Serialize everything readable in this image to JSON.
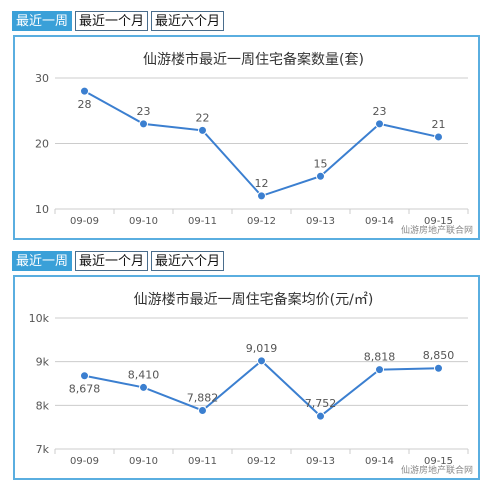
{
  "tabs_top": [
    {
      "label": "最近一周",
      "active": true
    },
    {
      "label": "最近一个月",
      "active": false
    },
    {
      "label": "最近六个月",
      "active": false
    }
  ],
  "tabs_bottom": [
    {
      "label": "最近一周",
      "active": true
    },
    {
      "label": "最近一个月",
      "active": false
    },
    {
      "label": "最近六个月",
      "active": false
    }
  ],
  "colors": {
    "accent": "#3aa0d8",
    "line": "#3b7fd0",
    "grid": "#cccccc"
  },
  "chart_data": [
    {
      "type": "line",
      "title": "仙游楼市最近一周住宅备案数量(套)",
      "categories": [
        "09-09",
        "09-10",
        "09-11",
        "09-12",
        "09-13",
        "09-14",
        "09-15"
      ],
      "values": [
        28,
        23,
        22,
        12,
        15,
        23,
        21
      ],
      "data_labels": [
        "28",
        "23",
        "22",
        "12",
        "15",
        "23",
        "21"
      ],
      "yticks": [
        10,
        20,
        30
      ],
      "ytick_labels": [
        "10",
        "20",
        "30"
      ],
      "ylim": [
        10,
        30
      ],
      "grid": true,
      "credit": "仙游房地产联合网"
    },
    {
      "type": "line",
      "title": "仙游楼市最近一周住宅备案均价(元/㎡)",
      "categories": [
        "09-09",
        "09-10",
        "09-11",
        "09-12",
        "09-13",
        "09-14",
        "09-15"
      ],
      "values": [
        8678,
        8410,
        7882,
        9019,
        7752,
        8818,
        8850
      ],
      "data_labels": [
        "8,678",
        "8,410",
        "7,882",
        "9,019",
        "7,752",
        "8,818",
        "8,850"
      ],
      "yticks": [
        7000,
        8000,
        9000,
        10000
      ],
      "ytick_labels": [
        "7k",
        "8k",
        "9k",
        "10k"
      ],
      "ylim": [
        7000,
        10000
      ],
      "grid": true,
      "credit": "仙游房地产联合网"
    }
  ]
}
